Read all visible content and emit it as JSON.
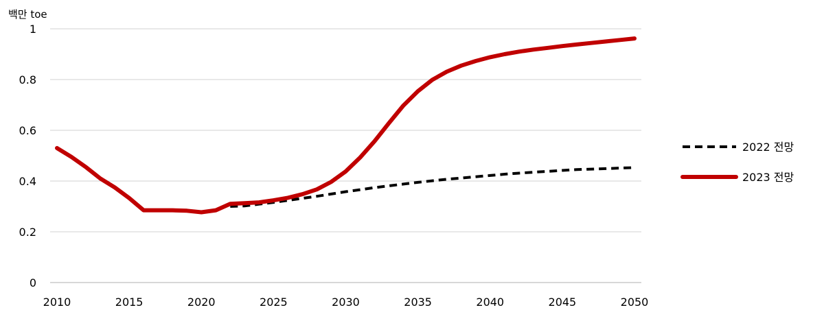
{
  "chart_data": {
    "type": "line",
    "unit_label": "백만 toe",
    "x": [
      2010,
      2011,
      2012,
      2013,
      2014,
      2015,
      2016,
      2017,
      2018,
      2019,
      2020,
      2021,
      2022,
      2023,
      2024,
      2025,
      2026,
      2027,
      2028,
      2029,
      2030,
      2031,
      2032,
      2033,
      2034,
      2035,
      2036,
      2037,
      2038,
      2039,
      2040,
      2041,
      2042,
      2043,
      2044,
      2045,
      2046,
      2047,
      2048,
      2049,
      2050
    ],
    "xlim": [
      2010,
      2050
    ],
    "ylim": [
      0,
      1
    ],
    "x_ticks": [
      2010,
      2015,
      2020,
      2025,
      2030,
      2035,
      2040,
      2045,
      2050
    ],
    "y_ticks": [
      0,
      0.2,
      0.4,
      0.6,
      0.8,
      1
    ],
    "y_tick_labels": [
      "0",
      "0.2",
      "0.4",
      "0.6",
      "0.8",
      "1"
    ],
    "grid": "horizontal",
    "legend_position": "right",
    "series": [
      {
        "name": "2022 전망",
        "color": "#000000",
        "style": "dashed",
        "x": [
          2022,
          2023,
          2024,
          2025,
          2026,
          2027,
          2028,
          2029,
          2030,
          2031,
          2032,
          2033,
          2034,
          2035,
          2036,
          2037,
          2038,
          2039,
          2040,
          2041,
          2042,
          2043,
          2044,
          2045,
          2046,
          2047,
          2048,
          2049,
          2050
        ],
        "values": [
          0.3,
          0.302,
          0.309,
          0.316,
          0.324,
          0.332,
          0.34,
          0.349,
          0.358,
          0.366,
          0.374,
          0.381,
          0.388,
          0.395,
          0.401,
          0.407,
          0.412,
          0.417,
          0.422,
          0.427,
          0.431,
          0.435,
          0.438,
          0.442,
          0.445,
          0.447,
          0.449,
          0.451,
          0.453
        ]
      },
      {
        "name": "2023 전망",
        "color": "#C00000",
        "style": "solid",
        "x": [
          2010,
          2011,
          2012,
          2013,
          2014,
          2015,
          2016,
          2017,
          2018,
          2019,
          2020,
          2021,
          2022,
          2023,
          2024,
          2025,
          2026,
          2027,
          2028,
          2029,
          2030,
          2031,
          2032,
          2033,
          2034,
          2035,
          2036,
          2037,
          2038,
          2039,
          2040,
          2041,
          2042,
          2043,
          2044,
          2045,
          2046,
          2047,
          2048,
          2049,
          2050
        ],
        "values": [
          0.53,
          0.495,
          0.455,
          0.41,
          0.375,
          0.333,
          0.285,
          0.285,
          0.285,
          0.283,
          0.277,
          0.285,
          0.31,
          0.313,
          0.316,
          0.324,
          0.334,
          0.348,
          0.367,
          0.397,
          0.438,
          0.493,
          0.557,
          0.629,
          0.698,
          0.754,
          0.799,
          0.831,
          0.855,
          0.873,
          0.888,
          0.9,
          0.91,
          0.918,
          0.925,
          0.932,
          0.938,
          0.944,
          0.95,
          0.956,
          0.962
        ]
      }
    ]
  }
}
